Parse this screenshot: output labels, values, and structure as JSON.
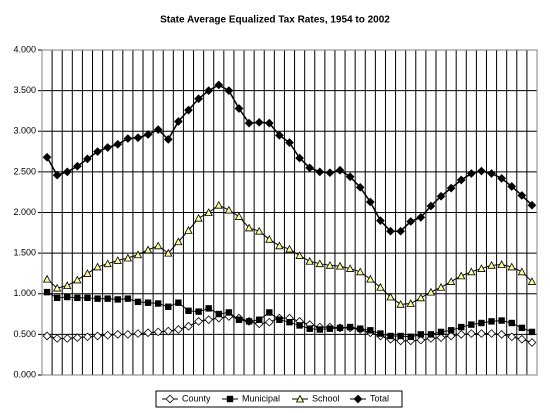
{
  "chart_data": {
    "type": "line",
    "title": "State Average Equalized Tax Rates, 1954 to 2002",
    "ylim": [
      0,
      4
    ],
    "yticks": [
      {
        "value": 0,
        "label": "0.000"
      },
      {
        "value": 0.5,
        "label": "0.500"
      },
      {
        "value": 1,
        "label": "1.000"
      },
      {
        "value": 1.5,
        "label": "1.500"
      },
      {
        "value": 2,
        "label": "2.000"
      },
      {
        "value": 2.5,
        "label": "2.500"
      },
      {
        "value": 3,
        "label": "3.000"
      },
      {
        "value": 3.5,
        "label": "3.500"
      },
      {
        "value": 4,
        "label": "4.000"
      }
    ],
    "grid": true,
    "legend": "bottom",
    "series": [
      {
        "name": "County",
        "color": "#000000",
        "marker": "diamond",
        "marker_fill": "#ffffff",
        "values": [
          0.48,
          0.45,
          0.45,
          0.46,
          0.47,
          0.48,
          0.49,
          0.5,
          0.5,
          0.51,
          0.52,
          0.53,
          0.54,
          0.56,
          0.6,
          0.66,
          0.68,
          0.7,
          0.72,
          0.7,
          0.66,
          0.63,
          0.65,
          0.7,
          0.7,
          0.66,
          0.62,
          0.59,
          0.59,
          0.58,
          0.58,
          0.56,
          0.52,
          0.48,
          0.44,
          0.42,
          0.42,
          0.43,
          0.45,
          0.46,
          0.48,
          0.5,
          0.51,
          0.51,
          0.51,
          0.5,
          0.47,
          0.44,
          0.4
        ]
      },
      {
        "name": "Municipal",
        "color": "#000000",
        "marker": "square",
        "marker_fill": "#000000",
        "values": [
          1.02,
          0.95,
          0.96,
          0.95,
          0.95,
          0.94,
          0.94,
          0.93,
          0.94,
          0.9,
          0.89,
          0.88,
          0.84,
          0.89,
          0.79,
          0.78,
          0.82,
          0.75,
          0.77,
          0.68,
          0.66,
          0.68,
          0.77,
          0.68,
          0.65,
          0.61,
          0.57,
          0.56,
          0.57,
          0.58,
          0.59,
          0.57,
          0.55,
          0.51,
          0.48,
          0.48,
          0.47,
          0.5,
          0.5,
          0.53,
          0.55,
          0.59,
          0.62,
          0.64,
          0.66,
          0.67,
          0.64,
          0.58,
          0.53
        ]
      },
      {
        "name": "School",
        "color": "#000000",
        "marker": "triangle",
        "marker_fill": "#ffff99",
        "values": [
          1.18,
          1.07,
          1.1,
          1.17,
          1.25,
          1.33,
          1.37,
          1.41,
          1.44,
          1.48,
          1.54,
          1.59,
          1.5,
          1.64,
          1.78,
          1.93,
          2.0,
          2.09,
          2.03,
          1.95,
          1.81,
          1.77,
          1.67,
          1.59,
          1.55,
          1.47,
          1.4,
          1.37,
          1.35,
          1.34,
          1.31,
          1.27,
          1.18,
          1.08,
          0.96,
          0.87,
          0.88,
          0.95,
          1.02,
          1.08,
          1.15,
          1.22,
          1.27,
          1.31,
          1.35,
          1.36,
          1.33,
          1.27,
          1.15
        ]
      },
      {
        "name": "Total",
        "color": "#000000",
        "marker": "diamond",
        "marker_fill": "#000000",
        "values": [
          2.68,
          2.46,
          2.5,
          2.57,
          2.66,
          2.75,
          2.8,
          2.84,
          2.91,
          2.92,
          2.96,
          3.02,
          2.9,
          3.12,
          3.26,
          3.4,
          3.5,
          3.57,
          3.5,
          3.28,
          3.1,
          3.11,
          3.1,
          2.95,
          2.86,
          2.67,
          2.55,
          2.5,
          2.49,
          2.52,
          2.44,
          2.31,
          2.13,
          1.9,
          1.77,
          1.77,
          1.89,
          1.94,
          2.08,
          2.2,
          2.3,
          2.4,
          2.48,
          2.51,
          2.48,
          2.42,
          2.32,
          2.21,
          2.09
        ]
      }
    ]
  }
}
